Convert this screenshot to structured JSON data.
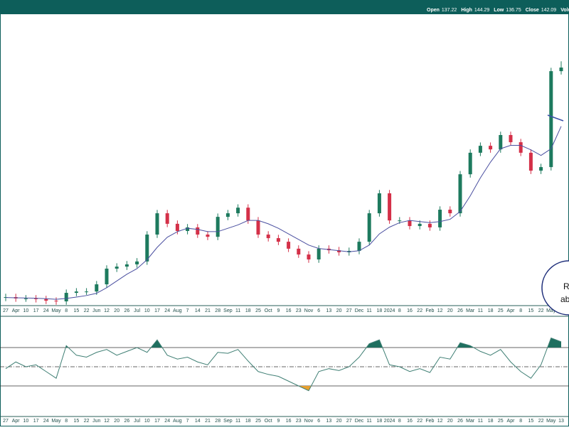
{
  "header": {
    "readout": [
      {
        "label": "Open",
        "value": 137.22
      },
      {
        "label": "High",
        "value": 144.29
      },
      {
        "label": "Low",
        "value": 136.75
      },
      {
        "label": "Close",
        "value": 142.09
      },
      {
        "label": "Volu"
      }
    ]
  },
  "annotation": {
    "lines": [
      "R",
      "ab"
    ]
  },
  "chart_data": [
    {
      "type": "candlestick",
      "categories": [
        "27",
        "Apr",
        "10",
        "17",
        "24",
        "May",
        "8",
        "15",
        "22",
        "Jun",
        "12",
        "20",
        "26",
        "Jul",
        "10",
        "17",
        "24",
        "Aug",
        "7",
        "14",
        "21",
        "28",
        "Sep",
        "11",
        "18",
        "25",
        "Oct",
        "9",
        "16",
        "23",
        "Nov",
        "6",
        "13",
        "20",
        "27",
        "Dec",
        "11",
        "18",
        "2024",
        "8",
        "16",
        "22",
        "Feb",
        "12",
        "20",
        "26",
        "Mar",
        "11",
        "18",
        "25",
        "Apr",
        "8",
        "15",
        "22",
        "May",
        "13"
      ],
      "open": [
        33.5,
        33.8,
        33.2,
        33.2,
        32.9,
        32.2,
        31.9,
        35.7,
        36.3,
        36.3,
        39.5,
        46.5,
        47.4,
        48.4,
        49.7,
        61.7,
        71.2,
        66.5,
        63.3,
        64.9,
        61.7,
        60.7,
        69.6,
        71.2,
        73.7,
        68.0,
        61.7,
        60.1,
        58.5,
        55.4,
        52.8,
        50.6,
        55.4,
        54.7,
        53.8,
        54.4,
        58.5,
        71.2,
        80.1,
        68.0,
        68.0,
        65.5,
        66.5,
        64.9,
        72.8,
        71.2,
        88.6,
        98.2,
        101.3,
        99.7,
        106.1,
        102.9,
        98.2,
        90.2,
        91.8,
        134.6
      ],
      "high": [
        35.3,
        35.3,
        34.7,
        34.7,
        34.4,
        33.7,
        37.2,
        37.8,
        37.8,
        41.0,
        48.0,
        48.9,
        49.9,
        51.2,
        63.2,
        72.7,
        72.7,
        68.0,
        66.4,
        66.4,
        63.2,
        71.1,
        72.7,
        75.2,
        75.2,
        69.5,
        63.2,
        61.6,
        60.0,
        56.9,
        54.3,
        56.9,
        56.9,
        56.2,
        55.9,
        60.0,
        72.7,
        81.6,
        81.6,
        69.5,
        69.5,
        68.0,
        68.0,
        74.3,
        74.3,
        90.1,
        99.7,
        102.8,
        102.8,
        107.6,
        107.6,
        104.4,
        99.7,
        93.3,
        136.1,
        139.0
      ],
      "low": [
        32.0,
        31.7,
        31.7,
        31.4,
        30.7,
        30.4,
        30.4,
        34.2,
        34.8,
        34.8,
        38.0,
        45.0,
        45.9,
        46.9,
        48.2,
        60.2,
        65.0,
        61.8,
        61.8,
        60.2,
        59.2,
        59.2,
        68.1,
        69.7,
        66.5,
        60.2,
        58.6,
        57.0,
        53.9,
        51.3,
        49.1,
        49.1,
        53.2,
        52.3,
        52.3,
        52.9,
        57.0,
        69.7,
        66.5,
        66.5,
        64.0,
        64.0,
        63.4,
        63.4,
        69.7,
        69.7,
        87.1,
        96.7,
        98.2,
        98.2,
        101.4,
        96.7,
        88.7,
        88.7,
        90.3,
        133.1
      ],
      "close": [
        33.8,
        33.2,
        33.2,
        32.9,
        32.2,
        31.9,
        35.7,
        36.3,
        36.3,
        39.5,
        46.5,
        47.4,
        48.4,
        49.7,
        61.7,
        71.2,
        66.5,
        63.3,
        64.9,
        61.7,
        60.7,
        69.6,
        71.2,
        73.7,
        68.0,
        61.7,
        60.1,
        58.5,
        55.4,
        52.8,
        50.6,
        55.4,
        54.7,
        53.8,
        54.4,
        58.5,
        71.2,
        80.1,
        68.0,
        68.0,
        65.5,
        66.5,
        64.9,
        72.8,
        71.2,
        88.6,
        98.2,
        101.3,
        99.7,
        106.1,
        102.9,
        98.2,
        90.2,
        91.8,
        134.6,
        136.2
      ],
      "up_color": "#1d7a5e",
      "down_color": "#d43048",
      "series": [
        {
          "color": "#4a4fa0",
          "values": [
            33.6,
            33.5,
            33.4,
            33.3,
            33.1,
            32.8,
            33.2,
            33.8,
            34.5,
            35.5,
            38.0,
            41.0,
            44.0,
            46.5,
            50.5,
            56.0,
            60.5,
            63.0,
            64.5,
            64.0,
            63.0,
            63.0,
            64.5,
            66.0,
            68.0,
            68.0,
            66.5,
            64.5,
            62.0,
            59.5,
            57.0,
            55.5,
            55.0,
            54.5,
            54.0,
            54.5,
            57.0,
            62.0,
            65.0,
            67.0,
            68.0,
            67.5,
            67.0,
            67.5,
            68.5,
            72.0,
            79.0,
            87.0,
            94.0,
            100.0,
            101.5,
            101.5,
            99.5,
            97.0,
            100.0,
            110.0
          ]
        }
      ],
      "ylim": [
        30,
        160
      ]
    },
    {
      "type": "line",
      "categories": [
        "27",
        "Apr",
        "10",
        "17",
        "24",
        "May",
        "8",
        "15",
        "22",
        "Jun",
        "12",
        "20",
        "26",
        "Jul",
        "10",
        "17",
        "24",
        "Aug",
        "7",
        "14",
        "21",
        "28",
        "Sep",
        "11",
        "18",
        "25",
        "Oct",
        "9",
        "16",
        "23",
        "Nov",
        "6",
        "13",
        "20",
        "27",
        "Dec",
        "11",
        "18",
        "2024",
        "8",
        "16",
        "22",
        "Feb",
        "12",
        "20",
        "26",
        "Mar",
        "11",
        "18",
        "25",
        "Apr",
        "8",
        "15",
        "22",
        "May",
        "13"
      ],
      "series": [
        {
          "color": "#3f7f74",
          "values": [
            48,
            55,
            50,
            52,
            45,
            38,
            72,
            62,
            60,
            65,
            68,
            62,
            66,
            70,
            65,
            78,
            62,
            58,
            60,
            55,
            52,
            65,
            64,
            68,
            56,
            45,
            42,
            40,
            35,
            30,
            25,
            45,
            48,
            46,
            50,
            60,
            74,
            78,
            52,
            50,
            45,
            48,
            44,
            60,
            58,
            75,
            72,
            66,
            62,
            68,
            55,
            45,
            38,
            52,
            80,
            76
          ]
        }
      ],
      "ylim": [
        0,
        100
      ],
      "levels": [
        30,
        50,
        70
      ],
      "overbought_color": "#1f6f5f",
      "oversold_color": "#e8a030"
    }
  ]
}
